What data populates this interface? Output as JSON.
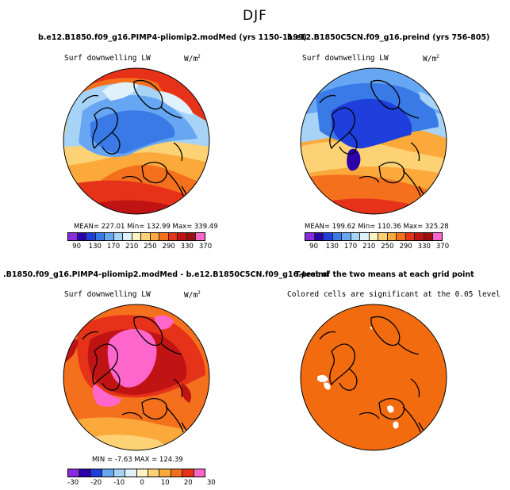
{
  "figure": {
    "title": "DJF"
  },
  "panels": [
    {
      "title": "b.e12.B1850.f09_g16.PIMP4-pliomip2.modMed (yrs 1150-1199)",
      "variable": "Surf downwelling LW",
      "units": "W/m",
      "units_sup": "2",
      "stats": "MEAN= 227.01   Min= 132.99   Max= 339.49",
      "colorbar_ticks": [
        "90",
        "130",
        "170",
        "210",
        "250",
        "290",
        "330",
        "370"
      ],
      "colorbar_colors": [
        "#8a2be2",
        "#2b00a8",
        "#1f3fdc",
        "#3a7ae6",
        "#66a6f2",
        "#a7d3f7",
        "#dff2fb",
        "#fff3c4",
        "#fdd275",
        "#fba93a",
        "#f5701d",
        "#e53218",
        "#c01414",
        "#9b0f0f",
        "#ff66cc"
      ]
    },
    {
      "title": "b.e12.B1850C5CN.f09_g16.preind (yrs 756-805)",
      "variable": "Surf downwelling LW",
      "units": "W/m",
      "units_sup": "2",
      "stats": "MEAN= 199.62   Min= 110.36   Max= 325.28",
      "colorbar_ticks": [
        "90",
        "130",
        "170",
        "210",
        "250",
        "290",
        "330",
        "370"
      ],
      "colorbar_colors": [
        "#8a2be2",
        "#2b00a8",
        "#1f3fdc",
        "#3a7ae6",
        "#66a6f2",
        "#a7d3f7",
        "#dff2fb",
        "#fff3c4",
        "#fdd275",
        "#fba93a",
        "#f5701d",
        "#e53218",
        "#c01414",
        "#9b0f0f",
        "#ff66cc"
      ]
    },
    {
      "title": ".B1850.f09_g16.PIMP4-pliomip2.modMed - b.e12.B1850C5CN.f09_g16.preind",
      "variable": "Surf downwelling LW",
      "units": "W/m",
      "units_sup": "2",
      "stats": "MIN =  -7.63  MAX = 124.39",
      "colorbar_ticks": [
        "-30",
        "-20",
        "-10",
        "0",
        "10",
        "20",
        "30"
      ],
      "colorbar_colors": [
        "#8a2be2",
        "#2b00a8",
        "#1f3fdc",
        "#66a6f2",
        "#a7d3f7",
        "#dff2fb",
        "#fff3c4",
        "#fdd275",
        "#fba93a",
        "#f5701d",
        "#e53218",
        "#ff66cc"
      ]
    },
    {
      "title": "T-test of the two means at each grid point",
      "variable": "Colored cells are significant at the 0.05 level"
    }
  ]
}
